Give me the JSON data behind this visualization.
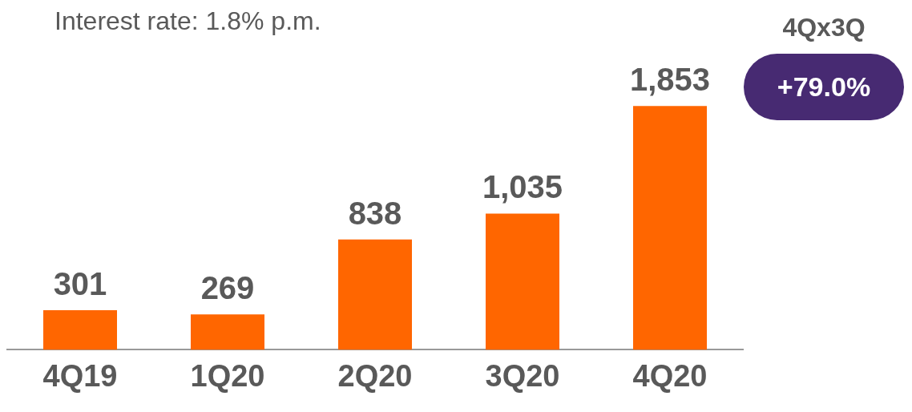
{
  "chart_data": {
    "type": "bar",
    "title": "Interest rate: 1.8% p.m.",
    "categories": [
      "4Q19",
      "1Q20",
      "2Q20",
      "3Q20",
      "4Q20"
    ],
    "values": [
      301,
      269,
      838,
      1035,
      1853
    ],
    "color": "#ff6600",
    "value_labels": [
      "301",
      "269",
      "838",
      "1,035",
      "1,853"
    ],
    "grid": false,
    "legend": false,
    "annotations": [
      "4Qx3Q",
      "+79.0%"
    ]
  }
}
